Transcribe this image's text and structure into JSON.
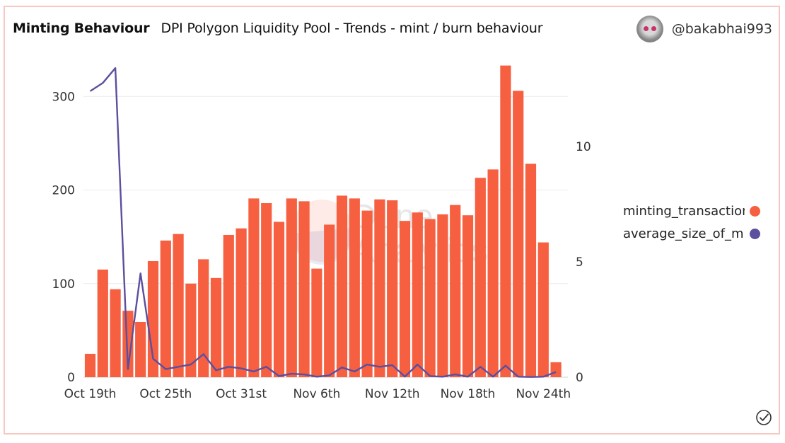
{
  "header": {
    "title": "Minting Behaviour",
    "subtitle": "DPI Polygon Liquidity Pool - Trends - mint / burn behaviour"
  },
  "user": {
    "handle": "@bakabhai993",
    "avatar_icon": "avatar-icon"
  },
  "watermark": {
    "line1": "Dune",
    "line2": "Analytics"
  },
  "colors": {
    "bar": "#f66041",
    "line": "#5b4f9e",
    "grid": "#ebebeb",
    "border": "#f6c8c0"
  },
  "chart_data": {
    "type": "bar+line",
    "title": "Minting Behaviour",
    "dates_start": "Oct 19th",
    "x_tick_labels": [
      "Oct 19th",
      "Oct 25th",
      "Oct 31st",
      "Nov 6th",
      "Nov 12th",
      "Nov 18th",
      "Nov 24th"
    ],
    "x_tick_indices": [
      0,
      6,
      12,
      18,
      24,
      30,
      36
    ],
    "left_axis": {
      "range": [
        0,
        330
      ],
      "ticks": [
        0,
        100,
        200,
        300
      ],
      "tick_labels": [
        "0",
        "100",
        "200",
        "300"
      ]
    },
    "right_axis": {
      "range": [
        0,
        13.4
      ],
      "ticks": [
        0,
        5,
        10
      ],
      "tick_labels": [
        "0",
        "5",
        "10"
      ]
    },
    "legend_position": "right",
    "series": [
      {
        "name": "minting_transactions",
        "legend_label": "minting_transactions",
        "type": "bar",
        "axis": "left",
        "values": [
          25,
          115,
          94,
          71,
          59,
          124,
          146,
          153,
          100,
          126,
          106,
          152,
          159,
          191,
          186,
          166,
          191,
          188,
          116,
          163,
          194,
          191,
          178,
          190,
          189,
          167,
          176,
          169,
          174,
          184,
          173,
          213,
          222,
          333,
          306,
          228,
          144,
          16
        ]
      },
      {
        "name": "average_size_of_mint",
        "legend_label": "average_size_of_mint",
        "type": "line",
        "axis": "right",
        "values": [
          12.4,
          12.75,
          13.4,
          0.35,
          4.5,
          0.8,
          0.35,
          0.45,
          0.55,
          1.0,
          0.3,
          0.45,
          0.38,
          0.25,
          0.45,
          0.05,
          0.15,
          0.12,
          0.02,
          0.08,
          0.42,
          0.25,
          0.55,
          0.45,
          0.52,
          0.02,
          0.55,
          0.05,
          0.02,
          0.12,
          0.02,
          0.45,
          0.02,
          0.5,
          0.02,
          0.01,
          0.02,
          0.22
        ]
      }
    ]
  }
}
